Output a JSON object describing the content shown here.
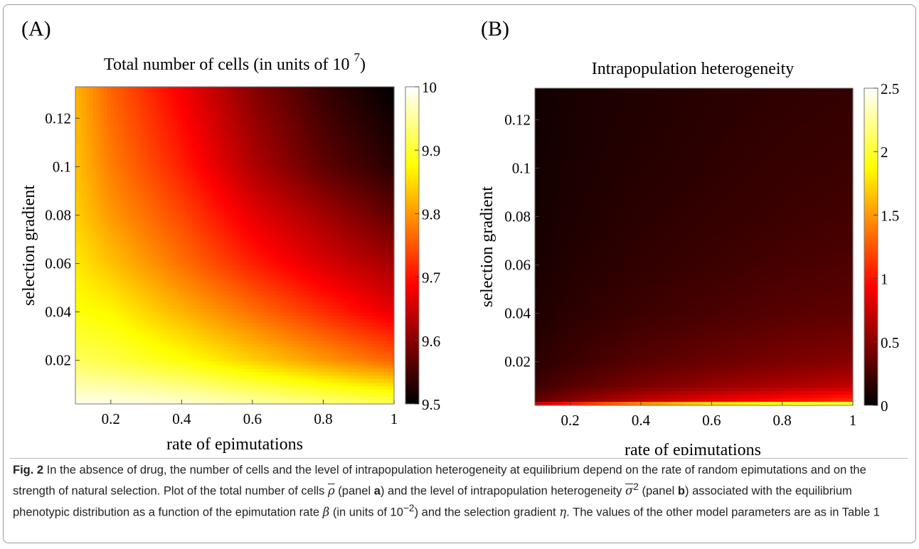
{
  "panels": [
    {
      "letter": "(A)",
      "title": "Total number of cells (in units of 10 ",
      "title_sup": "7",
      "title_close": ")",
      "xlabel": "rate of epimutations",
      "ylabel": "selection gradient",
      "x_ticks": [
        "0.2",
        "0.4",
        "0.6",
        "0.8",
        "1"
      ],
      "y_ticks": [
        "0.02",
        "0.04",
        "0.06",
        "0.08",
        "0.1",
        "0.12"
      ],
      "colorbar_ticks": [
        "9.5",
        "9.6",
        "9.7",
        "9.8",
        "9.9",
        "10"
      ]
    },
    {
      "letter": "(B)",
      "title": "Intrapopulation heterogeneity",
      "xlabel": "rate of epimutations",
      "ylabel": "selection gradient",
      "x_ticks": [
        "0.2",
        "0.4",
        "0.6",
        "0.8",
        "1"
      ],
      "y_ticks": [
        "0.02",
        "0.04",
        "0.06",
        "0.08",
        "0.1",
        "0.12"
      ],
      "colorbar_ticks": [
        "0",
        "0.5",
        "1",
        "1.5",
        "2",
        "2.5"
      ]
    }
  ],
  "chart_data": [
    {
      "type": "heatmap",
      "title": "Total number of cells (in units of 10^7)",
      "xlabel": "rate of epimutations",
      "ylabel": "selection gradient",
      "xlim": [
        0.1,
        1.0
      ],
      "ylim": [
        0.002,
        0.133
      ],
      "clim": [
        9.5,
        10.0
      ],
      "colormap": "hot",
      "x_ticks": [
        0.2,
        0.4,
        0.6,
        0.8,
        1.0
      ],
      "y_ticks": [
        0.02,
        0.04,
        0.06,
        0.08,
        0.1,
        0.12
      ],
      "colorbar_ticks": [
        9.5,
        9.6,
        9.7,
        9.8,
        9.9,
        10.0
      ],
      "x_samples": [
        0.1,
        0.2,
        0.4,
        0.6,
        0.8,
        1.0
      ],
      "y_samples": [
        0.002,
        0.02,
        0.04,
        0.06,
        0.08,
        0.1,
        0.133
      ],
      "values": [
        [
          9.99,
          9.99,
          9.98,
          9.96,
          9.94,
          9.92
        ],
        [
          9.92,
          9.91,
          9.88,
          9.84,
          9.8,
          9.76
        ],
        [
          9.88,
          9.87,
          9.82,
          9.77,
          9.72,
          9.67
        ],
        [
          9.86,
          9.83,
          9.77,
          9.71,
          9.66,
          9.62
        ],
        [
          9.84,
          9.8,
          9.74,
          9.67,
          9.62,
          9.57
        ],
        [
          9.83,
          9.78,
          9.71,
          9.63,
          9.57,
          9.53
        ],
        [
          9.82,
          9.76,
          9.68,
          9.6,
          9.54,
          9.5
        ]
      ]
    },
    {
      "type": "heatmap",
      "title": "Intrapopulation heterogeneity",
      "xlabel": "rate of epimutations",
      "ylabel": "selection gradient",
      "xlim": [
        0.1,
        1.0
      ],
      "ylim": [
        0.002,
        0.133
      ],
      "clim": [
        0.0,
        2.5
      ],
      "colormap": "hot",
      "x_ticks": [
        0.2,
        0.4,
        0.6,
        0.8,
        1.0
      ],
      "y_ticks": [
        0.02,
        0.04,
        0.06,
        0.08,
        0.1,
        0.12
      ],
      "colorbar_ticks": [
        0.0,
        0.5,
        1.0,
        1.5,
        2.0,
        2.5
      ],
      "x_samples": [
        0.1,
        0.2,
        0.4,
        0.6,
        0.8,
        1.0
      ],
      "y_samples": [
        0.002,
        0.004,
        0.01,
        0.02,
        0.04,
        0.06,
        0.08,
        0.1,
        0.133
      ],
      "values": [
        [
          0.92,
          1.3,
          1.84,
          2.25,
          2.4,
          2.5
        ],
        [
          0.35,
          0.5,
          0.71,
          0.87,
          1.0,
          1.12
        ],
        [
          0.22,
          0.32,
          0.45,
          0.55,
          0.63,
          0.71
        ],
        [
          0.16,
          0.22,
          0.32,
          0.39,
          0.45,
          0.5
        ],
        [
          0.11,
          0.16,
          0.22,
          0.27,
          0.32,
          0.35
        ],
        [
          0.09,
          0.13,
          0.18,
          0.22,
          0.26,
          0.29
        ],
        [
          0.08,
          0.11,
          0.16,
          0.19,
          0.22,
          0.25
        ],
        [
          0.07,
          0.1,
          0.14,
          0.17,
          0.2,
          0.22
        ],
        [
          0.06,
          0.09,
          0.12,
          0.15,
          0.17,
          0.19
        ]
      ]
    }
  ],
  "caption": {
    "fig_label": "Fig. 2",
    "s1": " In the absence of drug, the number of cells and the level of intrapopulation heterogeneity at equilibrium depend on the rate of random epimutations and on the strength of natural selection. Plot of the total number of cells ",
    "rho": "ρ",
    "s2": " (panel ",
    "panel_a": "a",
    "s3": ") and the level of intrapopulation heterogeneity ",
    "sigma": "σ",
    "sigma_sup": "2",
    "s4": " (panel ",
    "panel_b": "b",
    "s5": ") associated with the equilibrium phenotypic distribution as a function of the epimutation rate ",
    "beta": "β",
    "s6": " (in units of 10",
    "exp": "−2",
    "s7": ") and the selection gradient ",
    "eta": "η",
    "s8": ". The values of the other model parameters are as in Table 1"
  }
}
